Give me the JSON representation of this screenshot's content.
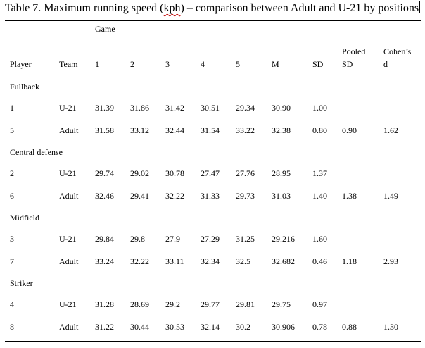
{
  "caption": {
    "before": "Table 7. Maximum running speed (",
    "flagged": "kph",
    "after": ") – comparison between Adult and U-21 by positions"
  },
  "group_header": "Game",
  "columns": [
    "Player",
    "Team",
    "1",
    "2",
    "3",
    "4",
    "5",
    "M",
    "SD",
    "Pooled\nSD",
    "Cohen’s\nd"
  ],
  "column_header_pooled": [
    "Pooled",
    "SD"
  ],
  "column_header_cohen": [
    "Cohen’s",
    "d"
  ],
  "groups": [
    {
      "label": "Fullback",
      "rows": [
        {
          "player": "1",
          "team": "U-21",
          "g1": "31.39",
          "g2": "31.86",
          "g3": "31.42",
          "g4": "30.51",
          "g5": "29.34",
          "m": "30.90",
          "sd": "1.00",
          "pooled": "",
          "cohen": ""
        },
        {
          "player": "5",
          "team": "Adult",
          "g1": "31.58",
          "g2": "33.12",
          "g3": "32.44",
          "g4": "31.54",
          "g5": "33.22",
          "m": "32.38",
          "sd": "0.80",
          "pooled": "0.90",
          "cohen": "1.62"
        }
      ]
    },
    {
      "label": "Central defense",
      "rows": [
        {
          "player": "2",
          "team": "U-21",
          "g1": "29.74",
          "g2": "29.02",
          "g3": "30.78",
          "g4": "27.47",
          "g5": "27.76",
          "m": "28.95",
          "sd": "1.37",
          "pooled": "",
          "cohen": ""
        },
        {
          "player": "6",
          "team": "Adult",
          "g1": "32.46",
          "g2": "29.41",
          "g3": "32.22",
          "g4": "31.33",
          "g5": "29.73",
          "m": "31.03",
          "sd": "1.40",
          "pooled": "1.38",
          "cohen": "1.49"
        }
      ]
    },
    {
      "label": "Midfield",
      "rows": [
        {
          "player": "3",
          "team": "U-21",
          "g1": "29.84",
          "g2": "29.8",
          "g3": "27.9",
          "g4": "27.29",
          "g5": "31.25",
          "m": "29.216",
          "sd": "1.60",
          "pooled": "",
          "cohen": ""
        },
        {
          "player": "7",
          "team": "Adult",
          "g1": "33.24",
          "g2": "32.22",
          "g3": "33.11",
          "g4": "32.34",
          "g5": "32.5",
          "m": "32.682",
          "sd": "0.46",
          "pooled": "1.18",
          "cohen": "2.93"
        }
      ]
    },
    {
      "label": "Striker",
      "rows": [
        {
          "player": "4",
          "team": "U-21",
          "g1": "31.28",
          "g2": "28.69",
          "g3": "29.2",
          "g4": "29.77",
          "g5": "29.81",
          "m": "29.75",
          "sd": "0.97",
          "pooled": "",
          "cohen": ""
        },
        {
          "player": "8",
          "team": "Adult",
          "g1": "31.22",
          "g2": "30.44",
          "g3": "30.53",
          "g4": "32.14",
          "g5": "30.2",
          "m": "30.906",
          "sd": "0.78",
          "pooled": "0.88",
          "cohen": "1.30"
        }
      ]
    }
  ],
  "chart_data": {
    "type": "table",
    "title": "Table 7. Maximum running speed (kph) – comparison between Adult and U-21 by positions",
    "columns": [
      "Player",
      "Team",
      "1",
      "2",
      "3",
      "4",
      "5",
      "M",
      "SD",
      "Pooled SD",
      "Cohen’s d"
    ],
    "rows": [
      [
        "Fullback"
      ],
      [
        "1",
        "U-21",
        "31.39",
        "31.86",
        "31.42",
        "30.51",
        "29.34",
        "30.90",
        "1.00",
        "",
        ""
      ],
      [
        "5",
        "Adult",
        "31.58",
        "33.12",
        "32.44",
        "31.54",
        "33.22",
        "32.38",
        "0.80",
        "0.90",
        "1.62"
      ],
      [
        "Central defense"
      ],
      [
        "2",
        "U-21",
        "29.74",
        "29.02",
        "30.78",
        "27.47",
        "27.76",
        "28.95",
        "1.37",
        "",
        ""
      ],
      [
        "6",
        "Adult",
        "32.46",
        "29.41",
        "32.22",
        "31.33",
        "29.73",
        "31.03",
        "1.40",
        "1.38",
        "1.49"
      ],
      [
        "Midfield"
      ],
      [
        "3",
        "U-21",
        "29.84",
        "29.8",
        "27.9",
        "27.29",
        "31.25",
        "29.216",
        "1.60",
        "",
        ""
      ],
      [
        "7",
        "Adult",
        "33.24",
        "32.22",
        "33.11",
        "32.34",
        "32.5",
        "32.682",
        "0.46",
        "1.18",
        "2.93"
      ],
      [
        "Striker"
      ],
      [
        "4",
        "U-21",
        "31.28",
        "28.69",
        "29.2",
        "29.77",
        "29.81",
        "29.75",
        "0.97",
        "",
        ""
      ],
      [
        "8",
        "Adult",
        "31.22",
        "30.44",
        "30.53",
        "32.14",
        "30.2",
        "30.906",
        "0.78",
        "0.88",
        "1.30"
      ]
    ]
  }
}
